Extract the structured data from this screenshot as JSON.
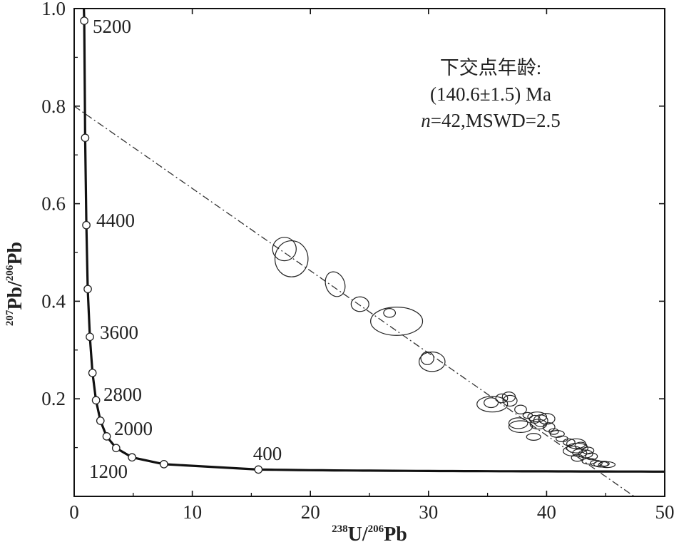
{
  "chart_data": {
    "type": "scatter",
    "title": "",
    "xlabel": {
      "sup1": "238",
      "base1": "U/",
      "sup2": "206",
      "base2": "Pb"
    },
    "ylabel": {
      "sup1": "207",
      "base1": "Pb/",
      "sup2": "206",
      "base2": "Pb"
    },
    "xlim": [
      0,
      50
    ],
    "ylim": [
      0.0,
      1.0
    ],
    "x_ticks": [
      0,
      10,
      20,
      30,
      40,
      50
    ],
    "x_tick_labels": [
      "0",
      "10",
      "20",
      "30",
      "40",
      "50"
    ],
    "y_ticks": [
      0.2,
      0.4,
      0.6,
      0.8,
      1.0
    ],
    "y_tick_labels": [
      "0.2",
      "0.4",
      "0.6",
      "0.8",
      "1.0"
    ],
    "grid": false,
    "annotation": {
      "line1": "下交点年龄:",
      "line2": "(140.6±1.5) Ma",
      "line3_italic": "n",
      "line3_rest": "=42,MSWD=2.5"
    },
    "concordia_markers": [
      {
        "age": 5200,
        "x": 0.85,
        "y": 0.975,
        "label": "5200"
      },
      {
        "age": 4800,
        "x": 0.93,
        "y": 0.735,
        "label": ""
      },
      {
        "age": 4400,
        "x": 1.03,
        "y": 0.556,
        "label": "4400"
      },
      {
        "age": 4000,
        "x": 1.15,
        "y": 0.425,
        "label": ""
      },
      {
        "age": 3600,
        "x": 1.33,
        "y": 0.327,
        "label": "3600"
      },
      {
        "age": 3200,
        "x": 1.55,
        "y": 0.253,
        "label": ""
      },
      {
        "age": 2800,
        "x": 1.85,
        "y": 0.197,
        "label": "2800"
      },
      {
        "age": 2400,
        "x": 2.22,
        "y": 0.155,
        "label": ""
      },
      {
        "age": 2000,
        "x": 2.75,
        "y": 0.123,
        "label": "2000"
      },
      {
        "age": 1600,
        "x": 3.55,
        "y": 0.099,
        "label": ""
      },
      {
        "age": 1200,
        "x": 4.9,
        "y": 0.08,
        "label": "1200"
      },
      {
        "age": 800,
        "x": 7.6,
        "y": 0.066,
        "label": ""
      },
      {
        "age": 400,
        "x": 15.6,
        "y": 0.055,
        "label": "400"
      }
    ],
    "discordia_line": {
      "x0": 0,
      "y0": 0.8,
      "x1": 48.0,
      "y1": -0.01,
      "lower_intercept_age_ma": 140.6
    },
    "ellipses": [
      {
        "x": 17.8,
        "y": 0.507,
        "rx": 1.0,
        "ry": 0.024,
        "angle": 0
      },
      {
        "x": 18.4,
        "y": 0.487,
        "rx": 1.4,
        "ry": 0.037,
        "angle": 0
      },
      {
        "x": 22.1,
        "y": 0.435,
        "rx": 0.8,
        "ry": 0.026,
        "angle": -20
      },
      {
        "x": 24.2,
        "y": 0.394,
        "rx": 0.75,
        "ry": 0.015,
        "angle": 0
      },
      {
        "x": 26.7,
        "y": 0.376,
        "rx": 0.5,
        "ry": 0.009,
        "angle": 0
      },
      {
        "x": 27.3,
        "y": 0.359,
        "rx": 2.2,
        "ry": 0.029,
        "angle": 0
      },
      {
        "x": 29.9,
        "y": 0.283,
        "rx": 0.55,
        "ry": 0.013,
        "angle": 0
      },
      {
        "x": 30.3,
        "y": 0.276,
        "rx": 1.1,
        "ry": 0.02,
        "angle": 0
      },
      {
        "x": 35.4,
        "y": 0.189,
        "rx": 1.3,
        "ry": 0.016,
        "angle": 0
      },
      {
        "x": 35.3,
        "y": 0.192,
        "rx": 0.6,
        "ry": 0.01,
        "angle": 0
      },
      {
        "x": 36.8,
        "y": 0.204,
        "rx": 0.55,
        "ry": 0.01,
        "angle": 0
      },
      {
        "x": 36.9,
        "y": 0.196,
        "rx": 0.6,
        "ry": 0.011,
        "angle": 0
      },
      {
        "x": 37.8,
        "y": 0.178,
        "rx": 0.5,
        "ry": 0.009,
        "angle": 0
      },
      {
        "x": 37.6,
        "y": 0.15,
        "rx": 0.8,
        "ry": 0.011,
        "angle": 0
      },
      {
        "x": 37.8,
        "y": 0.143,
        "rx": 1.0,
        "ry": 0.012,
        "angle": 0
      },
      {
        "x": 39.2,
        "y": 0.163,
        "rx": 0.8,
        "ry": 0.01,
        "angle": 0
      },
      {
        "x": 39.5,
        "y": 0.155,
        "rx": 0.6,
        "ry": 0.012,
        "angle": 0
      },
      {
        "x": 39.0,
        "y": 0.158,
        "rx": 0.45,
        "ry": 0.008,
        "angle": 0
      },
      {
        "x": 39.3,
        "y": 0.148,
        "rx": 0.7,
        "ry": 0.01,
        "angle": 0
      },
      {
        "x": 40.0,
        "y": 0.159,
        "rx": 0.7,
        "ry": 0.011,
        "angle": 0
      },
      {
        "x": 40.2,
        "y": 0.142,
        "rx": 0.5,
        "ry": 0.009,
        "angle": 0
      },
      {
        "x": 38.9,
        "y": 0.122,
        "rx": 0.6,
        "ry": 0.007,
        "angle": 0
      },
      {
        "x": 40.9,
        "y": 0.128,
        "rx": 0.6,
        "ry": 0.007,
        "angle": 0
      },
      {
        "x": 42.5,
        "y": 0.108,
        "rx": 0.8,
        "ry": 0.01,
        "angle": 0
      },
      {
        "x": 42.9,
        "y": 0.104,
        "rx": 0.5,
        "ry": 0.007,
        "angle": 0
      },
      {
        "x": 42.6,
        "y": 0.099,
        "rx": 0.9,
        "ry": 0.01,
        "angle": 0
      },
      {
        "x": 42.2,
        "y": 0.093,
        "rx": 0.8,
        "ry": 0.01,
        "angle": 0
      },
      {
        "x": 42.8,
        "y": 0.089,
        "rx": 0.6,
        "ry": 0.008,
        "angle": 0
      },
      {
        "x": 43.3,
        "y": 0.087,
        "rx": 0.6,
        "ry": 0.008,
        "angle": 0
      },
      {
        "x": 43.5,
        "y": 0.094,
        "rx": 0.5,
        "ry": 0.007,
        "angle": 0
      },
      {
        "x": 42.6,
        "y": 0.079,
        "rx": 0.5,
        "ry": 0.007,
        "angle": 0
      },
      {
        "x": 43.8,
        "y": 0.082,
        "rx": 0.5,
        "ry": 0.007,
        "angle": 0
      },
      {
        "x": 43.6,
        "y": 0.072,
        "rx": 0.6,
        "ry": 0.006,
        "angle": 0
      },
      {
        "x": 44.2,
        "y": 0.068,
        "rx": 0.5,
        "ry": 0.006,
        "angle": 0
      },
      {
        "x": 44.6,
        "y": 0.066,
        "rx": 0.6,
        "ry": 0.006,
        "angle": 0
      },
      {
        "x": 45.1,
        "y": 0.065,
        "rx": 0.7,
        "ry": 0.006,
        "angle": 0
      },
      {
        "x": 44.9,
        "y": 0.067,
        "rx": 0.4,
        "ry": 0.005,
        "angle": 0
      },
      {
        "x": 41.3,
        "y": 0.118,
        "rx": 0.5,
        "ry": 0.006,
        "angle": 0
      },
      {
        "x": 41.9,
        "y": 0.111,
        "rx": 0.5,
        "ry": 0.007,
        "angle": 0
      },
      {
        "x": 40.6,
        "y": 0.133,
        "rx": 0.4,
        "ry": 0.006,
        "angle": 0
      },
      {
        "x": 38.4,
        "y": 0.166,
        "rx": 0.4,
        "ry": 0.006,
        "angle": 0
      },
      {
        "x": 36.2,
        "y": 0.201,
        "rx": 0.5,
        "ry": 0.009,
        "angle": 0
      }
    ]
  }
}
